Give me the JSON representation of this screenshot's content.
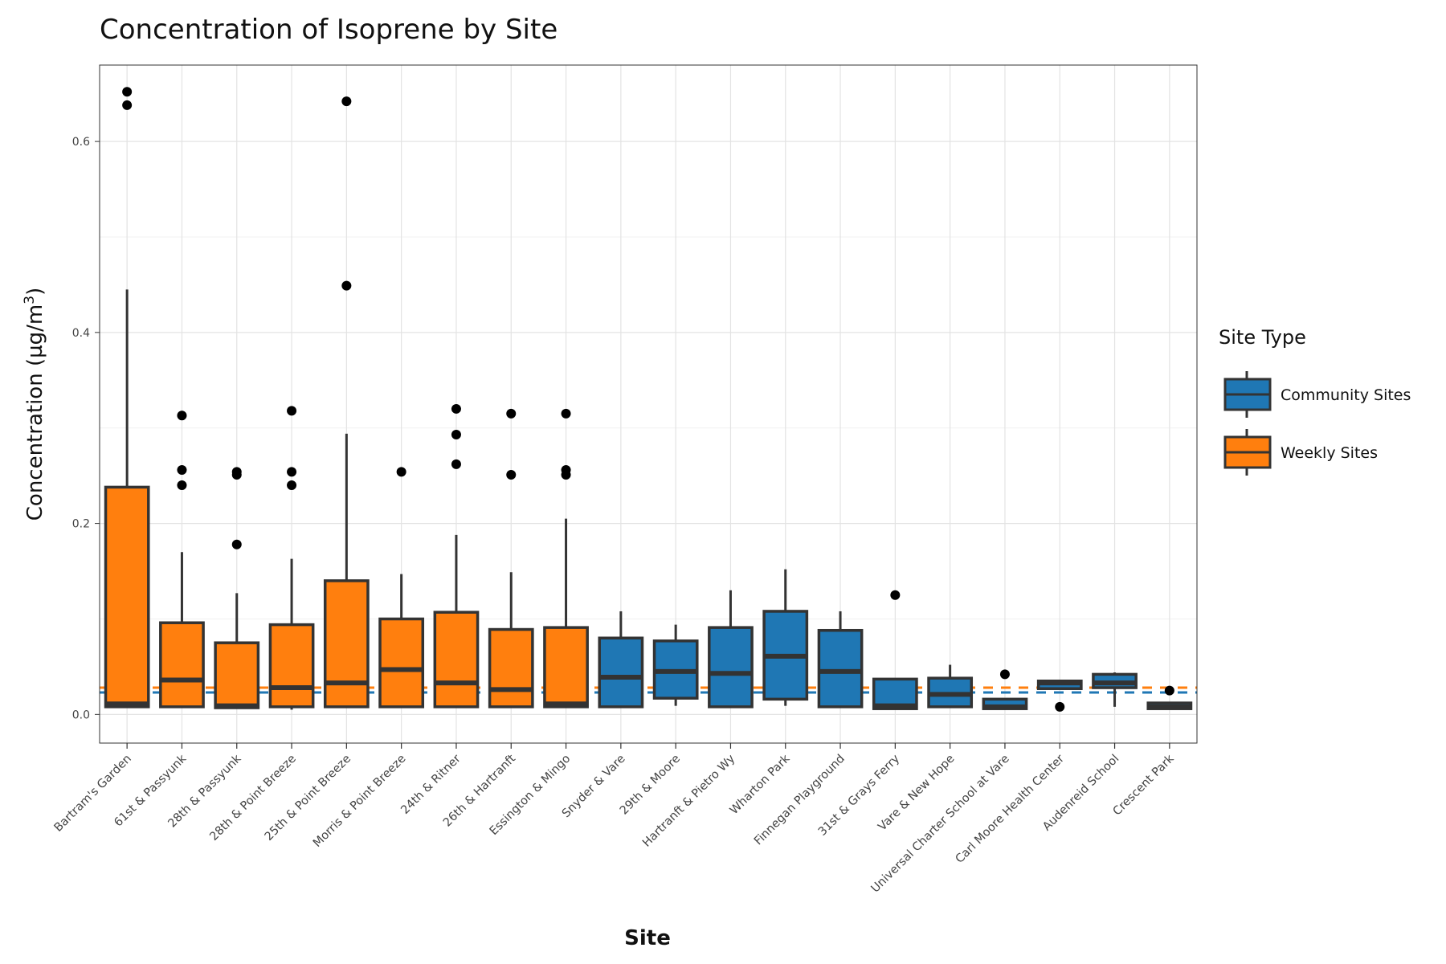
{
  "chart_data": {
    "type": "box",
    "title": "Concentration of Isoprene by Site",
    "xlabel": "Site",
    "ylabel": "Concentration (µg/m",
    "ylabel_sup": "3",
    "ylabel_close": ")",
    "ylim": [
      -0.03,
      0.68
    ],
    "yticks": [
      0.0,
      0.2,
      0.4,
      0.6
    ],
    "ytick_labels": [
      "0.0",
      "0.2",
      "0.4",
      "0.6"
    ],
    "grid": true,
    "legend": {
      "title": "Site Type",
      "placement": "right",
      "items": [
        {
          "label": "Community Sites",
          "color": "#1f77b4"
        },
        {
          "label": "Weekly Sites",
          "color": "#ff7f0e"
        }
      ]
    },
    "reference_lines": [
      {
        "type": "Weekly Sites",
        "value": 0.028,
        "color": "#ff7f0e",
        "style": "dashed"
      },
      {
        "type": "Community Sites",
        "value": 0.023,
        "color": "#1f77b4",
        "style": "dashed"
      }
    ],
    "colors": {
      "Community Sites": "#1f77b4",
      "Weekly Sites": "#ff7f0e",
      "outline": "#333333",
      "outlier": "#000000"
    },
    "categories": [
      {
        "site": "Bartram's Garden",
        "type": "Weekly Sites",
        "min": 0.008,
        "q1": 0.008,
        "median": 0.011,
        "q3": 0.238,
        "max": 0.445,
        "outliers": [
          0.652,
          0.638
        ]
      },
      {
        "site": "61st & Passyunk",
        "type": "Weekly Sites",
        "min": 0.008,
        "q1": 0.008,
        "median": 0.036,
        "q3": 0.096,
        "max": 0.17,
        "outliers": [
          0.313,
          0.256,
          0.24
        ]
      },
      {
        "site": "28th & Passyunk",
        "type": "Weekly Sites",
        "min": 0.007,
        "q1": 0.007,
        "median": 0.009,
        "q3": 0.075,
        "max": 0.127,
        "outliers": [
          0.254,
          0.251,
          0.178
        ]
      },
      {
        "site": "28th & Point Breeze",
        "type": "Weekly Sites",
        "min": 0.005,
        "q1": 0.008,
        "median": 0.028,
        "q3": 0.094,
        "max": 0.163,
        "outliers": [
          0.318,
          0.254,
          0.24
        ]
      },
      {
        "site": "25th & Point Breeze",
        "type": "Weekly Sites",
        "min": 0.008,
        "q1": 0.008,
        "median": 0.033,
        "q3": 0.14,
        "max": 0.294,
        "outliers": [
          0.642,
          0.449
        ]
      },
      {
        "site": "Morris & Point Breeze",
        "type": "Weekly Sites",
        "min": 0.008,
        "q1": 0.008,
        "median": 0.047,
        "q3": 0.1,
        "max": 0.147,
        "outliers": [
          0.254
        ]
      },
      {
        "site": "24th & Ritner",
        "type": "Weekly Sites",
        "min": 0.008,
        "q1": 0.008,
        "median": 0.033,
        "q3": 0.107,
        "max": 0.188,
        "outliers": [
          0.32,
          0.293,
          0.262
        ]
      },
      {
        "site": "26th & Hartranft",
        "type": "Weekly Sites",
        "min": 0.008,
        "q1": 0.008,
        "median": 0.026,
        "q3": 0.089,
        "max": 0.149,
        "outliers": [
          0.315,
          0.251
        ]
      },
      {
        "site": "Essington & Mingo",
        "type": "Weekly Sites",
        "min": 0.008,
        "q1": 0.008,
        "median": 0.011,
        "q3": 0.091,
        "max": 0.205,
        "outliers": [
          0.315,
          0.256,
          0.251
        ]
      },
      {
        "site": "Snyder & Vare",
        "type": "Community Sites",
        "min": 0.008,
        "q1": 0.008,
        "median": 0.039,
        "q3": 0.08,
        "max": 0.108,
        "outliers": []
      },
      {
        "site": "29th & Moore",
        "type": "Community Sites",
        "min": 0.009,
        "q1": 0.017,
        "median": 0.045,
        "q3": 0.077,
        "max": 0.094,
        "outliers": []
      },
      {
        "site": "Hartranft & Pietro Wy",
        "type": "Community Sites",
        "min": 0.008,
        "q1": 0.008,
        "median": 0.043,
        "q3": 0.091,
        "max": 0.13,
        "outliers": []
      },
      {
        "site": "Wharton Park",
        "type": "Community Sites",
        "min": 0.009,
        "q1": 0.016,
        "median": 0.061,
        "q3": 0.108,
        "max": 0.152,
        "outliers": []
      },
      {
        "site": "Finnegan Playground",
        "type": "Community Sites",
        "min": 0.008,
        "q1": 0.008,
        "median": 0.045,
        "q3": 0.088,
        "max": 0.108,
        "outliers": []
      },
      {
        "site": "31st & Grays Ferry",
        "type": "Community Sites",
        "min": 0.006,
        "q1": 0.006,
        "median": 0.009,
        "q3": 0.037,
        "max": 0.037,
        "outliers": [
          0.125
        ]
      },
      {
        "site": "Vare & New Hope",
        "type": "Community Sites",
        "min": 0.008,
        "q1": 0.008,
        "median": 0.021,
        "q3": 0.038,
        "max": 0.052,
        "outliers": []
      },
      {
        "site": "Universal Charter School at Vare",
        "type": "Community Sites",
        "min": 0.006,
        "q1": 0.006,
        "median": 0.008,
        "q3": 0.016,
        "max": 0.016,
        "outliers": [
          0.042
        ]
      },
      {
        "site": "Carl Moore Health Center",
        "type": "Community Sites",
        "min": 0.027,
        "q1": 0.027,
        "median": 0.033,
        "q3": 0.035,
        "max": 0.035,
        "outliers": [
          0.008
        ]
      },
      {
        "site": "Audenreid School",
        "type": "Community Sites",
        "min": 0.008,
        "q1": 0.028,
        "median": 0.033,
        "q3": 0.042,
        "max": 0.044,
        "outliers": []
      },
      {
        "site": "Crescent Park",
        "type": "Community Sites",
        "min": 0.006,
        "q1": 0.006,
        "median": 0.008,
        "q3": 0.012,
        "max": 0.012,
        "outliers": [
          0.025
        ]
      }
    ]
  }
}
